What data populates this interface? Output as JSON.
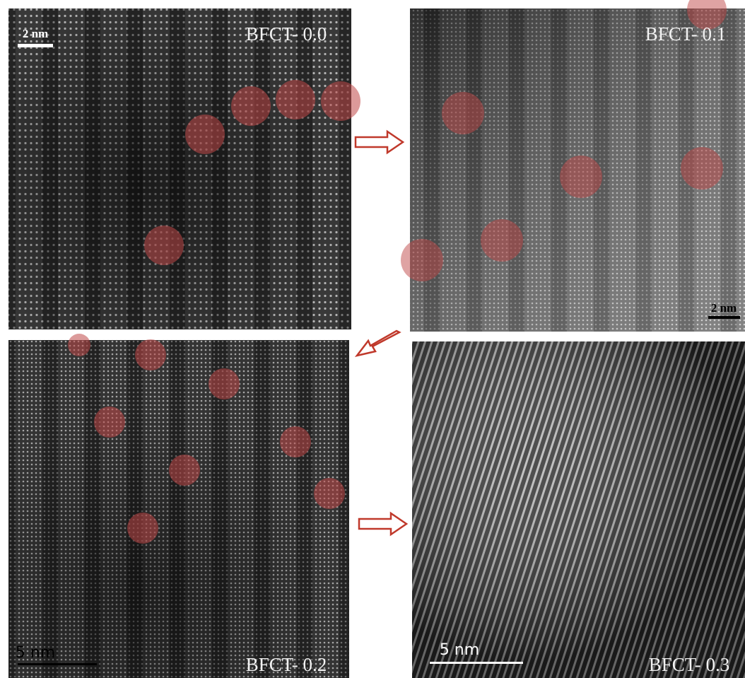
{
  "panels": [
    {
      "label": "BFCT- 0.0",
      "scale_bar": "2 nm"
    },
    {
      "label": "BFCT- 0.1",
      "scale_bar": "2 nm"
    },
    {
      "label": "BFCT- 0.2",
      "scale_bar": "5 nm"
    },
    {
      "label": "BFCT- 0.3",
      "scale_bar": "5 nm"
    }
  ]
}
